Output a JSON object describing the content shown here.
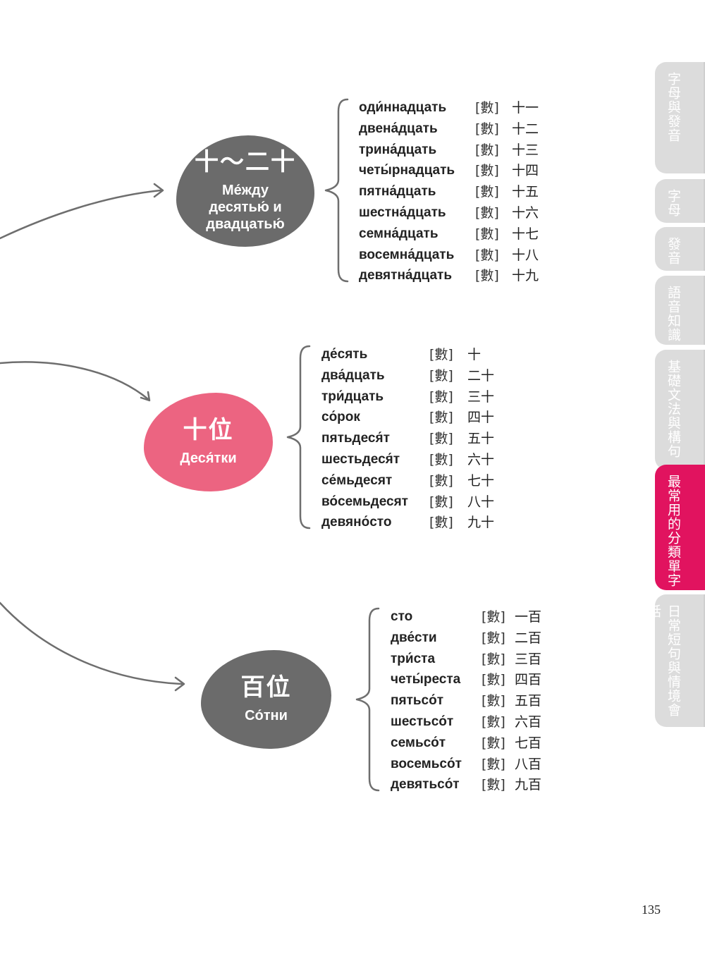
{
  "groups": [
    {
      "title_zh": "十～二十",
      "title_ru": "Ме́жду десятью́ и двадцатью́",
      "color": "#6b6b6b",
      "items": [
        {
          "word": "оди́ннадцать",
          "tag": "[數]",
          "num": "十一"
        },
        {
          "word": "двена́дцать",
          "tag": "[數]",
          "num": "十二"
        },
        {
          "word": "трина́дцать",
          "tag": "[數]",
          "num": "十三"
        },
        {
          "word": "четы́рнадцать",
          "tag": "[數]",
          "num": "十四"
        },
        {
          "word": "пятна́дцать",
          "tag": "[數]",
          "num": "十五"
        },
        {
          "word": "шестна́дцать",
          "tag": "[數]",
          "num": "十六"
        },
        {
          "word": "семна́дцать",
          "tag": "[數]",
          "num": "十七"
        },
        {
          "word": "восемна́дцать",
          "tag": "[數]",
          "num": "十八"
        },
        {
          "word": "девятна́дцать",
          "tag": "[數]",
          "num": "十九"
        }
      ]
    },
    {
      "title_zh": "十位",
      "title_ru": "Деся́тки",
      "color": "#ec6481",
      "items": [
        {
          "word": "де́сять",
          "tag": "[數]",
          "num": "十"
        },
        {
          "word": "два́дцать",
          "tag": "[數]",
          "num": "二十"
        },
        {
          "word": "три́дцать",
          "tag": "[數]",
          "num": "三十"
        },
        {
          "word": "со́рок",
          "tag": "[數]",
          "num": "四十"
        },
        {
          "word": "пятьдеся́т",
          "tag": "[數]",
          "num": "五十"
        },
        {
          "word": "шестьдеся́т",
          "tag": "[數]",
          "num": "六十"
        },
        {
          "word": "се́мьдесят",
          "tag": "[數]",
          "num": "七十"
        },
        {
          "word": "во́семьдесят",
          "tag": "[數]",
          "num": "八十"
        },
        {
          "word": "девяно́сто",
          "tag": "[數]",
          "num": "九十"
        }
      ]
    },
    {
      "title_zh": "百位",
      "title_ru": "Со́тни",
      "color": "#6b6b6b",
      "items": [
        {
          "word": "сто",
          "tag": "[數]",
          "num": "一百"
        },
        {
          "word": "две́сти",
          "tag": "[數]",
          "num": "二百"
        },
        {
          "word": "три́ста",
          "tag": "[數]",
          "num": "三百"
        },
        {
          "word": "четы́реста",
          "tag": "[數]",
          "num": "四百"
        },
        {
          "word": "пятьсо́т",
          "tag": "[數]",
          "num": "五百"
        },
        {
          "word": "шестьсо́т",
          "tag": "[數]",
          "num": "六百"
        },
        {
          "word": "семьсо́т",
          "tag": "[數]",
          "num": "七百"
        },
        {
          "word": "восемьсо́т",
          "tag": "[數]",
          "num": "八百"
        },
        {
          "word": "девятьсо́т",
          "tag": "[數]",
          "num": "九百"
        }
      ]
    }
  ],
  "side_tabs": [
    {
      "label": "字母與發音",
      "active": false
    },
    {
      "label": "字母",
      "active": false
    },
    {
      "label": "發音",
      "active": false
    },
    {
      "label": "語音知識",
      "active": false
    },
    {
      "label": "基礎文法與構句",
      "active": false
    },
    {
      "label": "最常用的分類單字",
      "active": true
    },
    {
      "label": "日常短句與情境會話",
      "active": false
    }
  ],
  "colors": {
    "accent": "#e1135f",
    "tab_inactive": "#dcdcdc",
    "bubble_gray": "#6b6b6b",
    "bubble_pink": "#ec6481"
  },
  "page_number": "135"
}
